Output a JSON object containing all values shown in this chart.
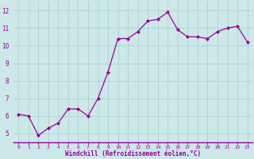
{
  "x": [
    0,
    1,
    2,
    3,
    4,
    5,
    6,
    7,
    8,
    9,
    10,
    11,
    12,
    13,
    14,
    15,
    16,
    17,
    18,
    19,
    20,
    21,
    22,
    23
  ],
  "y": [
    6.1,
    6.0,
    4.9,
    5.3,
    5.6,
    6.4,
    6.4,
    6.0,
    7.0,
    8.5,
    10.4,
    10.4,
    10.8,
    11.4,
    11.5,
    11.9,
    10.9,
    10.5,
    10.5,
    10.4,
    10.8,
    11.0,
    11.1,
    10.2
  ],
  "line_color": "#990099",
  "marker_color": "#990099",
  "bg_color": "#cce8e8",
  "grid_color": "#aacccc",
  "xlabel": "Windchill (Refroidissement éolien,°C)",
  "xlabel_color": "#990099",
  "xtick_labels": [
    "0",
    "1",
    "2",
    "3",
    "4",
    "5",
    "6",
    "7",
    "8",
    "9",
    "10",
    "11",
    "12",
    "13",
    "14",
    "15",
    "16",
    "17",
    "18",
    "19",
    "20",
    "21",
    "22",
    "23"
  ],
  "ytick_labels": [
    "5",
    "6",
    "7",
    "8",
    "9",
    "10",
    "11",
    "12"
  ],
  "ylim": [
    4.5,
    12.5
  ],
  "xlim": [
    -0.5,
    23.5
  ],
  "yticks": [
    5,
    6,
    7,
    8,
    9,
    10,
    11,
    12
  ]
}
